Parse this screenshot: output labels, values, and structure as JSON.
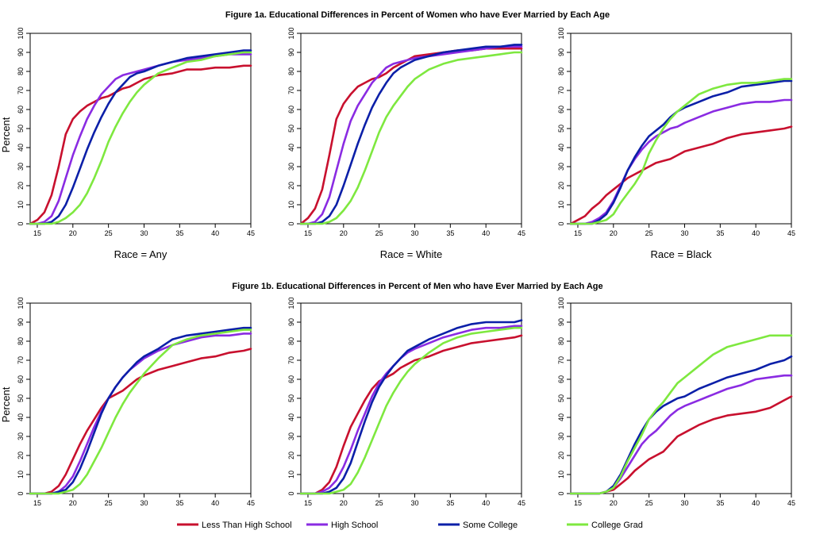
{
  "figure_titles": {
    "women": "Figure 1a. Educational Differences in Percent of Women who have Ever Married by Each Age",
    "men": "Figure 1b. Educational Differences in Percent of Men who have Ever Married by Each Age"
  },
  "y_axis_label": "Percent",
  "legend": [
    {
      "name": "Less Than High School",
      "color": "#c8102e"
    },
    {
      "name": "High School",
      "color": "#8a2be2"
    },
    {
      "name": "Some College",
      "color": "#0b1fa8"
    },
    {
      "name": "College Grad",
      "color": "#7ee83f"
    }
  ],
  "chart_data": [
    {
      "type": "line",
      "group": "women",
      "xlabel": "Race = Any",
      "ylabel": "Percent",
      "xlim": [
        14,
        45
      ],
      "ylim": [
        0,
        100
      ],
      "xticks": [
        15,
        20,
        25,
        30,
        35,
        40,
        45
      ],
      "yticks": [
        0,
        10,
        20,
        30,
        40,
        50,
        60,
        70,
        80,
        90,
        100
      ],
      "x": [
        14,
        15,
        16,
        17,
        18,
        19,
        20,
        21,
        22,
        23,
        24,
        25,
        26,
        27,
        28,
        29,
        30,
        32,
        34,
        36,
        38,
        40,
        42,
        44,
        45
      ],
      "series": [
        {
          "name": "Less Than High School",
          "values": [
            0,
            2,
            6,
            15,
            30,
            47,
            55,
            59,
            62,
            64,
            66,
            67,
            69,
            71,
            72,
            74,
            76,
            78,
            79,
            81,
            81,
            82,
            82,
            83,
            83
          ]
        },
        {
          "name": "High School",
          "values": [
            0,
            0,
            1,
            4,
            12,
            24,
            36,
            46,
            55,
            62,
            68,
            72,
            76,
            78,
            79,
            80,
            81,
            83,
            85,
            86,
            87,
            88,
            89,
            89,
            89
          ]
        },
        {
          "name": "Some College",
          "values": [
            0,
            0,
            0,
            1,
            4,
            10,
            19,
            29,
            39,
            48,
            56,
            63,
            69,
            73,
            77,
            79,
            80,
            83,
            85,
            87,
            88,
            89,
            90,
            91,
            91
          ]
        },
        {
          "name": "College Grad",
          "values": [
            0,
            0,
            0,
            0,
            1,
            3,
            6,
            10,
            16,
            24,
            33,
            43,
            51,
            58,
            64,
            69,
            73,
            79,
            82,
            85,
            86,
            88,
            89,
            90,
            90
          ]
        }
      ]
    },
    {
      "type": "line",
      "group": "women",
      "xlabel": "Race = White",
      "ylabel": "",
      "xlim": [
        14,
        45
      ],
      "ylim": [
        0,
        100
      ],
      "xticks": [
        15,
        20,
        25,
        30,
        35,
        40,
        45
      ],
      "yticks": [
        0,
        10,
        20,
        30,
        40,
        50,
        60,
        70,
        80,
        90,
        100
      ],
      "x": [
        14,
        15,
        16,
        17,
        18,
        19,
        20,
        21,
        22,
        23,
        24,
        25,
        26,
        27,
        28,
        29,
        30,
        32,
        34,
        36,
        38,
        40,
        42,
        44,
        45
      ],
      "series": [
        {
          "name": "Less Than High School",
          "values": [
            0,
            3,
            8,
            18,
            36,
            55,
            63,
            68,
            72,
            74,
            76,
            77,
            79,
            82,
            84,
            86,
            88,
            89,
            90,
            91,
            91,
            92,
            92,
            92,
            92
          ]
        },
        {
          "name": "High School",
          "values": [
            0,
            0,
            1,
            5,
            14,
            28,
            42,
            54,
            62,
            68,
            74,
            78,
            82,
            84,
            85,
            86,
            87,
            88,
            89,
            90,
            91,
            92,
            93,
            93,
            93
          ]
        },
        {
          "name": "Some College",
          "values": [
            0,
            0,
            0,
            1,
            4,
            10,
            20,
            31,
            42,
            52,
            61,
            68,
            74,
            79,
            82,
            84,
            86,
            88,
            90,
            91,
            92,
            93,
            93,
            94,
            94
          ]
        },
        {
          "name": "College Grad",
          "values": [
            0,
            0,
            0,
            0,
            1,
            3,
            7,
            12,
            19,
            28,
            38,
            48,
            56,
            62,
            67,
            72,
            76,
            81,
            84,
            86,
            87,
            88,
            89,
            90,
            90
          ]
        }
      ]
    },
    {
      "type": "line",
      "group": "women",
      "xlabel": "Race = Black",
      "ylabel": "",
      "xlim": [
        14,
        45
      ],
      "ylim": [
        0,
        100
      ],
      "xticks": [
        15,
        20,
        25,
        30,
        35,
        40,
        45
      ],
      "yticks": [
        0,
        10,
        20,
        30,
        40,
        50,
        60,
        70,
        80,
        90,
        100
      ],
      "x": [
        14,
        15,
        16,
        17,
        18,
        19,
        20,
        21,
        22,
        23,
        24,
        25,
        26,
        27,
        28,
        29,
        30,
        32,
        34,
        36,
        38,
        40,
        42,
        44,
        45
      ],
      "series": [
        {
          "name": "Less Than High School",
          "values": [
            0,
            2,
            4,
            8,
            11,
            15,
            18,
            21,
            24,
            26,
            28,
            30,
            32,
            33,
            34,
            36,
            38,
            40,
            42,
            45,
            47,
            48,
            49,
            50,
            51
          ]
        },
        {
          "name": "High School",
          "values": [
            0,
            0,
            0,
            1,
            3,
            6,
            12,
            20,
            28,
            34,
            39,
            43,
            46,
            48,
            50,
            51,
            53,
            56,
            59,
            61,
            63,
            64,
            64,
            65,
            65
          ]
        },
        {
          "name": "Some College",
          "values": [
            0,
            0,
            0,
            0,
            2,
            5,
            11,
            19,
            28,
            35,
            41,
            46,
            49,
            52,
            56,
            59,
            61,
            64,
            67,
            69,
            72,
            73,
            74,
            75,
            75
          ]
        },
        {
          "name": "College Grad",
          "values": [
            0,
            0,
            0,
            0,
            1,
            2,
            5,
            11,
            16,
            21,
            27,
            37,
            44,
            50,
            55,
            59,
            62,
            68,
            71,
            73,
            74,
            74,
            75,
            76,
            76
          ]
        }
      ]
    },
    {
      "type": "line",
      "group": "men",
      "xlabel": "",
      "ylabel": "Percent",
      "xlim": [
        14,
        45
      ],
      "ylim": [
        0,
        100
      ],
      "xticks": [
        15,
        20,
        25,
        30,
        35,
        40,
        45
      ],
      "yticks": [
        0,
        10,
        20,
        30,
        40,
        50,
        60,
        70,
        80,
        90,
        100
      ],
      "x": [
        14,
        15,
        16,
        17,
        18,
        19,
        20,
        21,
        22,
        23,
        24,
        25,
        26,
        27,
        28,
        29,
        30,
        32,
        34,
        36,
        38,
        40,
        42,
        44,
        45
      ],
      "series": [
        {
          "name": "Less Than High School",
          "values": [
            0,
            0,
            0,
            1,
            4,
            10,
            18,
            26,
            33,
            39,
            45,
            50,
            52,
            54,
            57,
            60,
            62,
            65,
            67,
            69,
            71,
            72,
            74,
            75,
            76
          ]
        },
        {
          "name": "High School",
          "values": [
            0,
            0,
            0,
            0,
            1,
            4,
            9,
            17,
            26,
            35,
            43,
            50,
            56,
            61,
            65,
            68,
            71,
            75,
            78,
            80,
            82,
            83,
            83,
            84,
            84
          ]
        },
        {
          "name": "Some College",
          "values": [
            0,
            0,
            0,
            0,
            1,
            2,
            6,
            13,
            22,
            32,
            42,
            50,
            56,
            61,
            65,
            69,
            72,
            76,
            81,
            83,
            84,
            85,
            86,
            87,
            87
          ]
        },
        {
          "name": "College Grad",
          "values": [
            0,
            0,
            0,
            0,
            0,
            1,
            2,
            5,
            10,
            17,
            24,
            32,
            40,
            47,
            53,
            58,
            63,
            71,
            78,
            81,
            83,
            84,
            85,
            86,
            86
          ]
        }
      ]
    },
    {
      "type": "line",
      "group": "men",
      "xlabel": "",
      "ylabel": "",
      "xlim": [
        14,
        45
      ],
      "ylim": [
        0,
        100
      ],
      "xticks": [
        15,
        20,
        25,
        30,
        35,
        40,
        45
      ],
      "yticks": [
        0,
        10,
        20,
        30,
        40,
        50,
        60,
        70,
        80,
        90,
        100
      ],
      "x": [
        14,
        15,
        16,
        17,
        18,
        19,
        20,
        21,
        22,
        23,
        24,
        25,
        26,
        27,
        28,
        29,
        30,
        32,
        34,
        36,
        38,
        40,
        42,
        44,
        45
      ],
      "series": [
        {
          "name": "Less Than High School",
          "values": [
            0,
            0,
            0,
            2,
            6,
            14,
            25,
            35,
            42,
            49,
            55,
            59,
            61,
            63,
            66,
            68,
            70,
            72,
            75,
            77,
            79,
            80,
            81,
            82,
            83
          ]
        },
        {
          "name": "High School",
          "values": [
            0,
            0,
            0,
            1,
            3,
            7,
            14,
            23,
            33,
            42,
            51,
            58,
            63,
            67,
            71,
            74,
            76,
            79,
            82,
            84,
            86,
            87,
            87,
            88,
            88
          ]
        },
        {
          "name": "Some College",
          "values": [
            0,
            0,
            0,
            0,
            1,
            3,
            8,
            16,
            27,
            38,
            48,
            56,
            62,
            67,
            71,
            75,
            77,
            81,
            84,
            87,
            89,
            90,
            90,
            90,
            91
          ]
        },
        {
          "name": "College Grad",
          "values": [
            0,
            0,
            0,
            0,
            0,
            1,
            2,
            5,
            11,
            19,
            28,
            37,
            46,
            53,
            59,
            64,
            68,
            74,
            79,
            82,
            84,
            85,
            86,
            87,
            87
          ]
        }
      ]
    },
    {
      "type": "line",
      "group": "men",
      "xlabel": "",
      "ylabel": "",
      "xlim": [
        14,
        45
      ],
      "ylim": [
        0,
        100
      ],
      "xticks": [
        15,
        20,
        25,
        30,
        35,
        40,
        45
      ],
      "yticks": [
        0,
        10,
        20,
        30,
        40,
        50,
        60,
        70,
        80,
        90,
        100
      ],
      "x": [
        14,
        15,
        16,
        17,
        18,
        19,
        20,
        21,
        22,
        23,
        24,
        25,
        26,
        27,
        28,
        29,
        30,
        32,
        34,
        36,
        38,
        40,
        42,
        44,
        45
      ],
      "series": [
        {
          "name": "Less Than High School",
          "values": [
            0,
            0,
            0,
            0,
            0,
            1,
            2,
            5,
            8,
            12,
            15,
            18,
            20,
            22,
            26,
            30,
            32,
            36,
            39,
            41,
            42,
            43,
            45,
            49,
            51
          ]
        },
        {
          "name": "High School",
          "values": [
            0,
            0,
            0,
            0,
            0,
            1,
            3,
            8,
            14,
            20,
            26,
            30,
            33,
            37,
            41,
            44,
            46,
            49,
            52,
            55,
            57,
            60,
            61,
            62,
            62
          ]
        },
        {
          "name": "Some College",
          "values": [
            0,
            0,
            0,
            0,
            0,
            1,
            4,
            10,
            18,
            26,
            33,
            39,
            43,
            46,
            48,
            50,
            51,
            55,
            58,
            61,
            63,
            65,
            68,
            70,
            72
          ]
        },
        {
          "name": "College Grad",
          "values": [
            0,
            0,
            0,
            0,
            0,
            1,
            3,
            9,
            17,
            24,
            31,
            39,
            44,
            48,
            53,
            58,
            61,
            67,
            73,
            77,
            79,
            81,
            83,
            83,
            83
          ]
        }
      ]
    }
  ]
}
